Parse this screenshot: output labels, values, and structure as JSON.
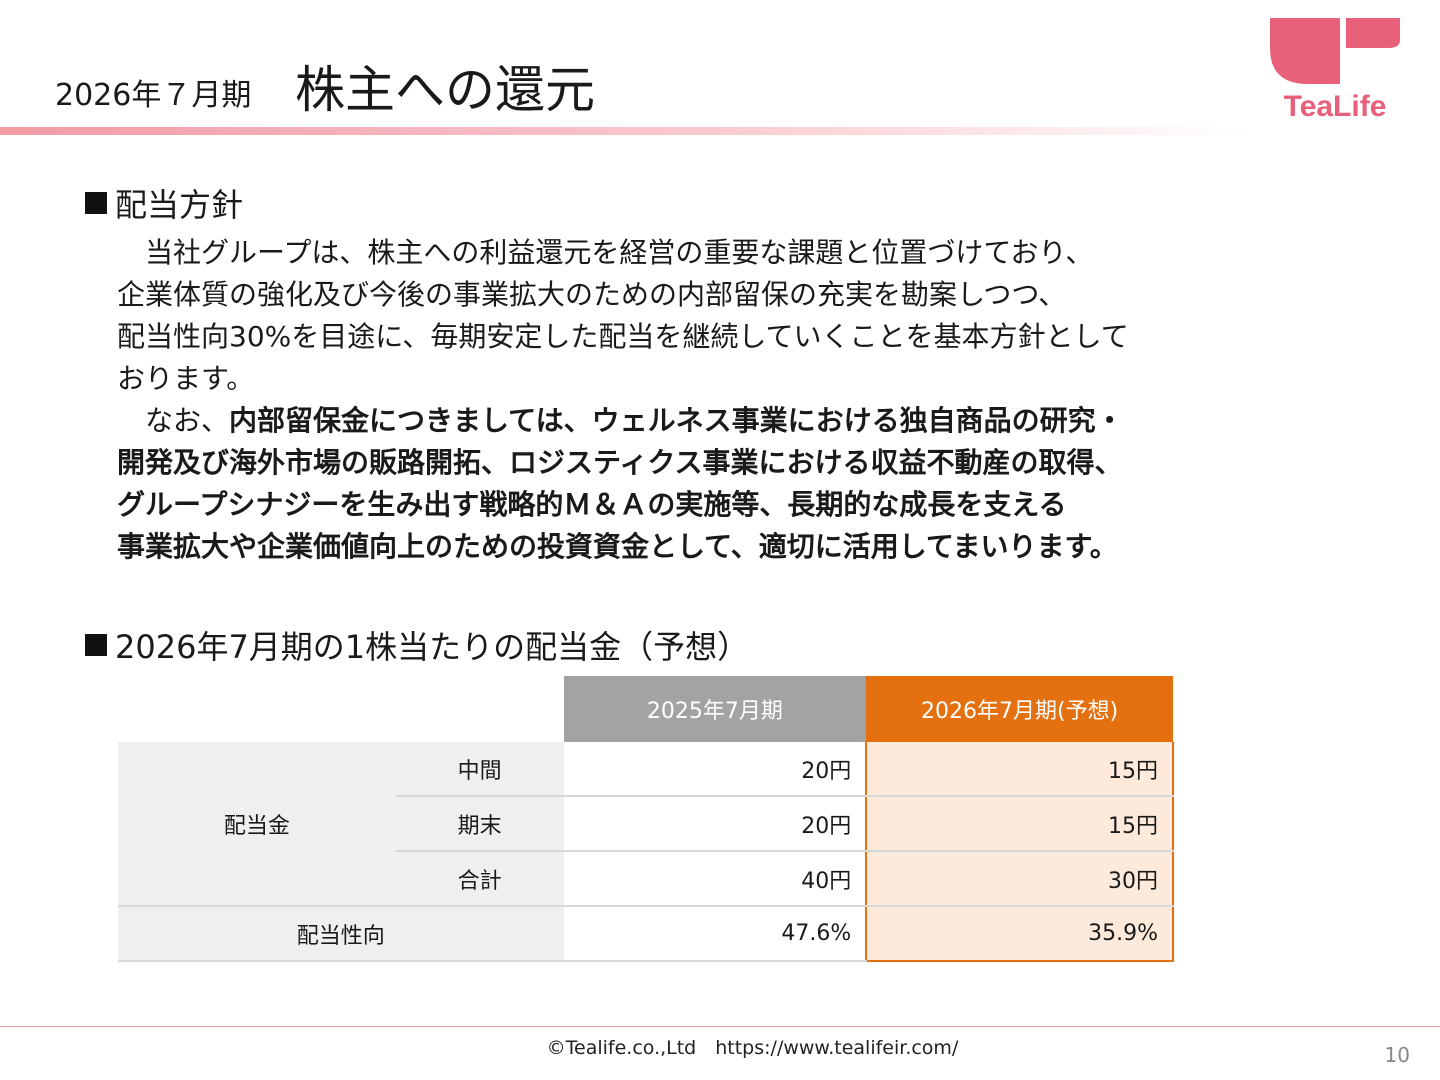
{
  "header": {
    "period": "2026年７月期",
    "title": "株主への還元",
    "logo_text": "TeaLife",
    "colors": {
      "logo": "#e8607a",
      "rule": "#f29ba5"
    }
  },
  "policy": {
    "heading": "配当方針",
    "paragraph": "　当社グループは、株主への利益還元を経営の重要な課題と位置づけており、\n企業体質の強化及び今後の事業拡大のための内部留保の充実を勘案しつつ、\n配当性向30%を目途に、毎期安定した配当を継続していくことを基本方針として\nおります。\n　なお、",
    "bold": "内部留保金につきましては、ウェルネス事業における独自商品の研究・\n開発及び海外市場の販路開拓、ロジスティクス事業における収益不動産の取得、\nグループシナジーを生み出す戦略的Ｍ＆Ａの実施等、長期的な成長を支える\n事業拡大や企業価値向上のための投資資金として、適切に活用してまいります。"
  },
  "dividend": {
    "heading": "2026年7月期の1株当たりの配当金（予想）",
    "columns": [
      "2025年7月期",
      "2026年7月期(予想)"
    ],
    "group_label": "配当金",
    "rows": [
      {
        "label": "中間",
        "v2025": "20円",
        "v2026": "15円"
      },
      {
        "label": "期末",
        "v2025": "20円",
        "v2026": "15円"
      },
      {
        "label": "合計",
        "v2025": "40円",
        "v2026": "30円"
      }
    ],
    "payout": {
      "label": "配当性向",
      "v2025": "47.6%",
      "v2026": "35.9%"
    },
    "colors": {
      "header_2025": "#a3a3a3",
      "header_2026": "#e5700f",
      "highlight": "#fdeadb"
    }
  },
  "footer": {
    "text": "©Tealife.co.,Ltd　https://www.tealifeir.com/",
    "page": "10"
  }
}
